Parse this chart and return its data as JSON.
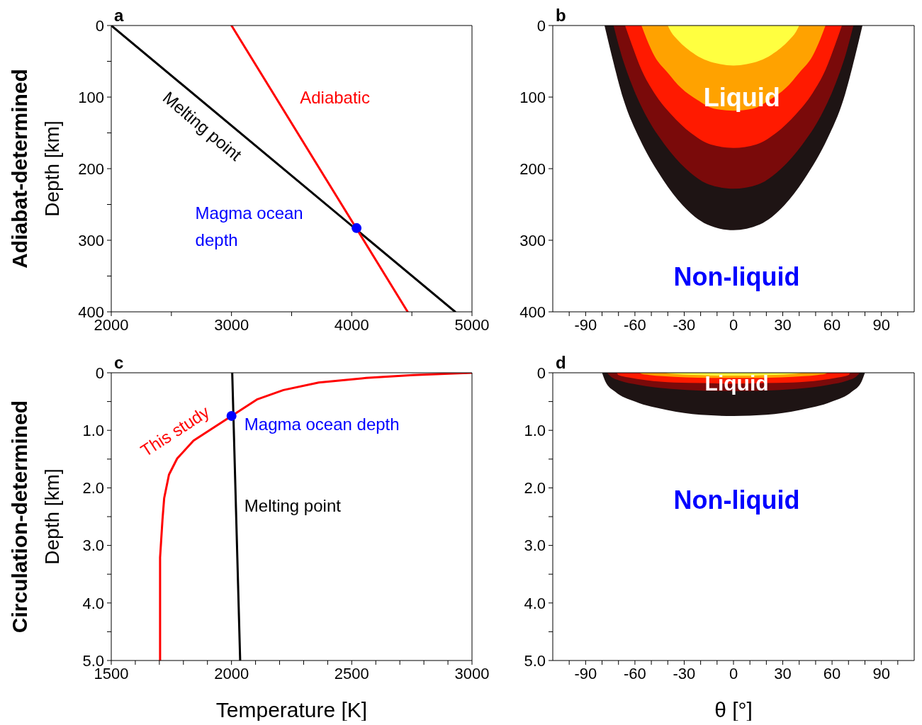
{
  "chart_data": [
    {
      "type": "line",
      "title": "a",
      "ylabel": "Depth [km]",
      "xlim": [
        2000,
        5000
      ],
      "xticks": [
        2000,
        {
          "value": 2500,
          "label": null
        },
        3000,
        {
          "value": 3500,
          "label": null
        },
        4000,
        {
          "value": 4500,
          "label": null
        },
        5000
      ],
      "ylim": [
        400,
        0
      ],
      "yticks": [
        0,
        {
          "value": 50,
          "label": null
        },
        100,
        {
          "value": 150,
          "label": null
        },
        200,
        {
          "value": 250,
          "label": null
        },
        300,
        {
          "value": 350,
          "label": null
        },
        400
      ],
      "series": [
        {
          "color": "#000000",
          "x": [
            2000,
            4860
          ],
          "values": [
            0,
            400
          ]
        },
        {
          "color": "#ff0000",
          "x": [
            3000,
            4465
          ],
          "values": [
            0,
            400
          ]
        },
        {
          "type": "scatter",
          "marker": "circle",
          "color": "#0000ff",
          "x": [
            4040
          ],
          "values": [
            283
          ]
        }
      ],
      "annotations": [
        "Adiabat-determined",
        "Melting point",
        "Adiabatic",
        "Magma ocean depth"
      ]
    },
    {
      "type": "area",
      "title": "b",
      "xlim": [
        -110,
        110
      ],
      "xticks": [
        {
          "value": -100,
          "label": null
        },
        -90,
        {
          "value": -80,
          "label": null
        },
        {
          "value": -70,
          "label": null
        },
        -60,
        {
          "value": -50,
          "label": null
        },
        {
          "value": -40,
          "label": null
        },
        -30,
        {
          "value": -20,
          "label": null
        },
        {
          "value": -10,
          "label": null
        },
        0,
        {
          "value": 10,
          "label": null
        },
        {
          "value": 20,
          "label": null
        },
        30,
        {
          "value": 40,
          "label": null
        },
        {
          "value": 50,
          "label": null
        },
        60,
        {
          "value": 70,
          "label": null
        },
        {
          "value": 80,
          "label": null
        },
        90,
        {
          "value": 100,
          "label": null
        }
      ],
      "ylim": [
        400,
        0
      ],
      "yticks": [
        0,
        100,
        200,
        300,
        400
      ],
      "series": [
        {
          "color": "#1e1414",
          "x": [
            -78.5,
            -74,
            -67,
            -57,
            -45,
            -31,
            -16,
            0,
            16,
            31,
            45,
            57,
            67,
            74,
            78.5
          ],
          "values": [
            0,
            43,
            103,
            159,
            208,
            251,
            278,
            286,
            278,
            251,
            208,
            159,
            103,
            43,
            0
          ]
        },
        {
          "color": "#7a0a0a",
          "x": [
            -73,
            -69,
            -62,
            -53,
            -42,
            -29,
            -15,
            0,
            15,
            29,
            42,
            53,
            62,
            69,
            73
          ],
          "values": [
            0,
            35,
            82,
            127,
            166,
            200,
            222,
            228,
            222,
            200,
            166,
            127,
            82,
            35,
            0
          ]
        },
        {
          "color": "#ff1a00",
          "x": [
            -66,
            -62,
            -56,
            -48,
            -38,
            -26,
            -14,
            0,
            14,
            26,
            38,
            48,
            56,
            62,
            66
          ],
          "values": [
            0,
            26,
            62,
            95,
            124,
            150,
            166,
            171,
            166,
            150,
            124,
            95,
            62,
            26,
            0
          ]
        },
        {
          "color": "#ffa200",
          "x": [
            -56,
            -53,
            -48,
            -40,
            -32,
            -22,
            -12,
            0,
            12,
            22,
            32,
            40,
            48,
            53,
            56
          ],
          "values": [
            0,
            18,
            43,
            66,
            87,
            104,
            116,
            119,
            116,
            104,
            87,
            66,
            43,
            18,
            0
          ]
        },
        {
          "color": "#ffff40",
          "x": [
            -40,
            -38,
            -34,
            -29,
            -23,
            -16,
            -8,
            0,
            8,
            16,
            23,
            29,
            34,
            38,
            40
          ],
          "values": [
            0,
            9,
            20,
            31,
            41,
            49,
            54,
            56,
            54,
            49,
            41,
            31,
            20,
            9,
            0
          ]
        }
      ],
      "annotations": [
        "Liquid",
        "Non-liquid"
      ]
    },
    {
      "type": "line",
      "title": "c",
      "xlabel": "Temperature [K]",
      "ylabel": "Depth [km]",
      "xlim": [
        1500,
        3000
      ],
      "xticks": [
        1500,
        {
          "value": 1600,
          "label": null
        },
        {
          "value": 1700,
          "label": null
        },
        {
          "value": 1800,
          "label": null
        },
        {
          "value": 1900,
          "label": null
        },
        2000,
        {
          "value": 2100,
          "label": null
        },
        {
          "value": 2200,
          "label": null
        },
        {
          "value": 2300,
          "label": null
        },
        {
          "value": 2400,
          "label": null
        },
        2500,
        {
          "value": 2600,
          "label": null
        },
        {
          "value": 2700,
          "label": null
        },
        {
          "value": 2800,
          "label": null
        },
        {
          "value": 2900,
          "label": null
        },
        3000
      ],
      "ylim": [
        5,
        0
      ],
      "yticks": [
        0,
        {
          "value": 0.5,
          "label": null
        },
        {
          "value": 1,
          "label": "1.0"
        },
        {
          "value": 1.5,
          "label": null
        },
        {
          "value": 2,
          "label": "2.0"
        },
        {
          "value": 2.5,
          "label": null
        },
        {
          "value": 3,
          "label": "3.0"
        },
        {
          "value": 3.5,
          "label": null
        },
        {
          "value": 4,
          "label": "4.0"
        },
        {
          "value": 4.5,
          "label": null
        },
        {
          "value": 5,
          "label": "5.0"
        }
      ],
      "series": [
        {
          "color": "#ff0000",
          "x": [
            1703,
            1703,
            1713,
            1720,
            1740,
            1774,
            1842,
            2000,
            2108,
            2216,
            2363,
            2560,
            2755,
            3000
          ],
          "values": [
            5,
            3.21,
            2.55,
            2.18,
            1.77,
            1.49,
            1.18,
            0.75,
            0.46,
            0.3,
            0.17,
            0.09,
            0.04,
            0
          ]
        },
        {
          "color": "#000000",
          "x": [
            2003,
            2036
          ],
          "values": [
            0,
            5
          ]
        },
        {
          "type": "scatter",
          "marker": "circle",
          "color": "#0000ff",
          "x": [
            2000
          ],
          "values": [
            0.75
          ]
        }
      ],
      "annotations": [
        "Circulation-determined",
        "This study",
        "Magma ocean depth",
        "Melting point"
      ]
    },
    {
      "type": "area",
      "title": "d",
      "xlabel": "θ [°]",
      "xlim": [
        -110,
        110
      ],
      "xticks": [
        {
          "value": -100,
          "label": null
        },
        -90,
        {
          "value": -80,
          "label": null
        },
        {
          "value": -70,
          "label": null
        },
        -60,
        {
          "value": -50,
          "label": null
        },
        {
          "value": -40,
          "label": null
        },
        -30,
        {
          "value": -20,
          "label": null
        },
        {
          "value": -10,
          "label": null
        },
        0,
        {
          "value": 10,
          "label": null
        },
        {
          "value": 20,
          "label": null
        },
        30,
        {
          "value": 40,
          "label": null
        },
        {
          "value": 50,
          "label": null
        },
        60,
        {
          "value": 70,
          "label": null
        },
        {
          "value": 80,
          "label": null
        },
        90,
        {
          "value": 100,
          "label": null
        }
      ],
      "ylim": [
        5,
        0
      ],
      "yticks": [
        0,
        {
          "value": 0.5,
          "label": null
        },
        {
          "value": 1,
          "label": "1.0"
        },
        {
          "value": 1.5,
          "label": null
        },
        {
          "value": 2,
          "label": "2.0"
        },
        {
          "value": 2.5,
          "label": null
        },
        {
          "value": 3,
          "label": "3.0"
        },
        {
          "value": 3.5,
          "label": null
        },
        {
          "value": 4,
          "label": "4.0"
        },
        {
          "value": 4.5,
          "label": null
        },
        {
          "value": 5,
          "label": "5.0"
        }
      ],
      "series": [
        {
          "color": "#1e1414",
          "x": [
            -80,
            -78,
            -72,
            -60,
            -40,
            -20,
            0,
            20,
            40,
            60,
            72,
            78,
            80
          ],
          "values": [
            0,
            0.15,
            0.33,
            0.5,
            0.65,
            0.73,
            0.75,
            0.73,
            0.65,
            0.5,
            0.33,
            0.15,
            0
          ]
        },
        {
          "color": "#7a0a0a",
          "x": [
            -77,
            -75,
            -69,
            -58,
            -38,
            -19,
            0,
            19,
            38,
            58,
            69,
            75,
            77
          ],
          "values": [
            0,
            0.06,
            0.14,
            0.21,
            0.28,
            0.31,
            0.32,
            0.31,
            0.28,
            0.21,
            0.14,
            0.06,
            0
          ]
        },
        {
          "color": "#ff1a00",
          "x": [
            -71,
            -70,
            -64,
            -53,
            -36,
            -18,
            0,
            18,
            36,
            53,
            64,
            70,
            71
          ],
          "values": [
            0,
            0.04,
            0.08,
            0.13,
            0.17,
            0.18,
            0.19,
            0.18,
            0.17,
            0.13,
            0.08,
            0.04,
            0
          ]
        },
        {
          "color": "#ffa200",
          "x": [
            -57,
            -56,
            -51,
            -43,
            -29,
            -14,
            0,
            14,
            29,
            43,
            51,
            56,
            57
          ],
          "values": [
            0,
            0.02,
            0.04,
            0.06,
            0.08,
            0.09,
            0.09,
            0.09,
            0.08,
            0.06,
            0.04,
            0.02,
            0
          ]
        },
        {
          "color": "#ffff40",
          "x": [
            -41,
            -40,
            -37,
            -31,
            -20,
            -10,
            0,
            10,
            20,
            31,
            37,
            40,
            41
          ],
          "values": [
            0,
            0.01,
            0.02,
            0.03,
            0.04,
            0.05,
            0.05,
            0.05,
            0.04,
            0.03,
            0.02,
            0.01,
            0
          ]
        }
      ],
      "annotations": [
        "Liquid",
        "Non-liquid"
      ]
    }
  ]
}
